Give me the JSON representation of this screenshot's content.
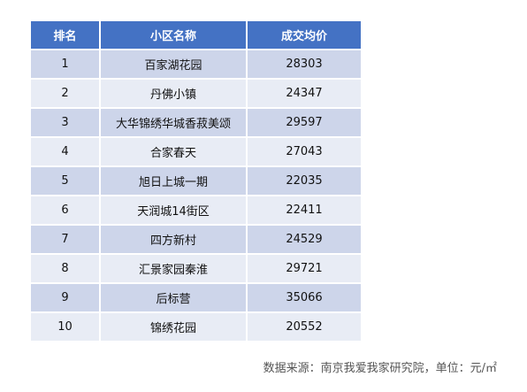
{
  "table": {
    "headers": {
      "rank": "排名",
      "name": "小区名称",
      "price": "成交均价"
    },
    "rows": [
      {
        "rank": "1",
        "name": "百家湖花园",
        "price": "28303"
      },
      {
        "rank": "2",
        "name": "丹佛小镇",
        "price": "24347"
      },
      {
        "rank": "3",
        "name": "大华锦绣华城香菽美颂",
        "price": "29597"
      },
      {
        "rank": "4",
        "name": "合家春天",
        "price": "27043"
      },
      {
        "rank": "5",
        "name": "旭日上城一期",
        "price": "22035"
      },
      {
        "rank": "6",
        "name": "天润城14街区",
        "price": "22411"
      },
      {
        "rank": "7",
        "name": "四方新村",
        "price": "24529"
      },
      {
        "rank": "8",
        "name": "汇景家园秦淮",
        "price": "29721"
      },
      {
        "rank": "9",
        "name": "后标营",
        "price": "35066"
      },
      {
        "rank": "10",
        "name": "锦绣花园",
        "price": "20552"
      }
    ]
  },
  "source_note": "数据来源：南京我爱我家研究院，单位：元/㎡",
  "colors": {
    "header_bg": "#4472c4",
    "row_odd_bg": "#cdd5ea",
    "row_even_bg": "#e8ecf5"
  }
}
